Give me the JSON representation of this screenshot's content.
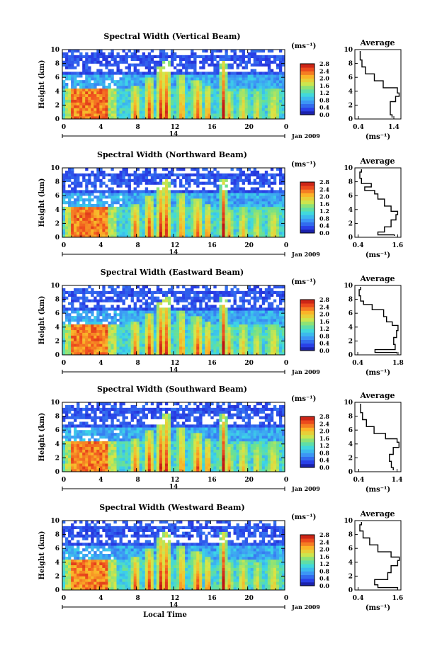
{
  "figure": {
    "xlabel": "Local Time",
    "ylabel": "Height (km)",
    "unit_label": "(ms⁻¹)",
    "date_label": "Jan 2009",
    "day_label": "14",
    "avg_title": "Average",
    "avg_xlabel": "(ms⁻¹)"
  },
  "chart_data": [
    {
      "type": "heatmap",
      "title": "Spectral Width (Vertical Beam)",
      "xlabel": "",
      "ylabel": "Height (km)",
      "xlim": [
        0,
        24
      ],
      "ylim": [
        0,
        10
      ],
      "xticks": [
        "0",
        "4",
        "8",
        "12",
        "16",
        "20",
        "0"
      ],
      "yticks": [
        "0",
        "2",
        "4",
        "6",
        "8",
        "10"
      ],
      "colorbar": {
        "label": "(ms⁻¹)",
        "ticks": [
          "2.8",
          "2.4",
          "2.0",
          "1.6",
          "1.2",
          "0.8",
          "0.4",
          "0.0"
        ],
        "range": [
          0,
          2.8
        ]
      },
      "average_profile": {
        "title": "Average",
        "xlabel": "(ms⁻¹)",
        "xlim": [
          0.3,
          1.6
        ],
        "xticks": [
          "0.4",
          "1.4"
        ],
        "height_km": [
          0.2,
          1.0,
          2.0,
          3.0,
          3.5,
          4.0,
          5.0,
          6.0,
          7.0,
          8.0,
          9.0,
          9.8
        ],
        "width_ms": [
          1.35,
          1.3,
          1.3,
          1.45,
          1.55,
          1.5,
          1.1,
          0.85,
          0.6,
          0.5,
          0.45,
          0.45
        ]
      }
    },
    {
      "type": "heatmap",
      "title": "Spectral Width (Northward Beam)",
      "xlabel": "",
      "ylabel": "Height (km)",
      "xlim": [
        0,
        24
      ],
      "ylim": [
        0,
        10
      ],
      "xticks": [
        "0",
        "4",
        "8",
        "12",
        "16",
        "20",
        "0"
      ],
      "yticks": [
        "0",
        "2",
        "4",
        "6",
        "8",
        "10"
      ],
      "colorbar": {
        "label": "(ms⁻¹)",
        "ticks": [
          "2.8",
          "2.4",
          "2.0",
          "1.6",
          "1.2",
          "0.8",
          "0.4",
          "0.0"
        ],
        "range": [
          0,
          2.8
        ]
      },
      "average_profile": {
        "title": "Average",
        "xlabel": "(ms⁻¹)",
        "xlim": [
          0.3,
          1.7
        ],
        "xticks": [
          "0.4",
          "1.6"
        ],
        "height_km": [
          0.2,
          0.5,
          1.0,
          2.0,
          3.0,
          3.5,
          4.0,
          5.0,
          6.0,
          6.5,
          7.0,
          7.5,
          8.0,
          9.0,
          9.8
        ],
        "width_ms": [
          1.5,
          1.0,
          1.2,
          1.4,
          1.55,
          1.6,
          1.4,
          1.2,
          1.0,
          0.9,
          0.6,
          0.8,
          0.5,
          0.45,
          0.5
        ]
      }
    },
    {
      "type": "heatmap",
      "title": "Spectral Width (Eastward Beam)",
      "xlabel": "",
      "ylabel": "Height (km)",
      "xlim": [
        0,
        24
      ],
      "ylim": [
        0,
        10
      ],
      "xticks": [
        "0",
        "4",
        "8",
        "12",
        "16",
        "20",
        "0"
      ],
      "yticks": [
        "0",
        "2",
        "4",
        "6",
        "8",
        "10"
      ],
      "colorbar": {
        "label": "(ms⁻¹)",
        "ticks": [
          "2.8",
          "2.4",
          "2.0",
          "1.6",
          "1.2",
          "0.8",
          "0.4",
          "0.0"
        ],
        "range": [
          0,
          2.8
        ]
      },
      "average_profile": {
        "title": "Average",
        "xlabel": "(ms⁻¹)",
        "xlim": [
          0.3,
          1.9
        ],
        "xticks": [
          "0.4",
          "1.8"
        ],
        "height_km": [
          0.2,
          0.5,
          1.0,
          2.0,
          3.0,
          4.0,
          4.5,
          5.0,
          6.0,
          7.0,
          7.5,
          8.0,
          9.0,
          9.8
        ],
        "width_ms": [
          1.75,
          1.0,
          1.7,
          1.65,
          1.75,
          1.8,
          1.6,
          1.4,
          1.3,
          0.9,
          0.6,
          0.5,
          0.45,
          0.5
        ]
      }
    },
    {
      "type": "heatmap",
      "title": "Spectral Width (Southward Beam)",
      "xlabel": "",
      "ylabel": "Height (km)",
      "xlim": [
        0,
        24
      ],
      "ylim": [
        0,
        10
      ],
      "xticks": [
        "0",
        "4",
        "8",
        "12",
        "16",
        "20",
        "0"
      ],
      "yticks": [
        "0",
        "2",
        "4",
        "6",
        "8",
        "10"
      ],
      "colorbar": {
        "label": "(ms⁻¹)",
        "ticks": [
          "2.8",
          "2.4",
          "2.0",
          "1.6",
          "1.2",
          "0.8",
          "0.4",
          "0.0"
        ],
        "range": [
          0,
          2.8
        ]
      },
      "average_profile": {
        "title": "Average",
        "xlabel": "(ms⁻¹)",
        "xlim": [
          0.3,
          1.5
        ],
        "xticks": [
          "0.4",
          "1.4"
        ],
        "height_km": [
          0.2,
          1.0,
          2.0,
          3.0,
          4.0,
          4.5,
          5.0,
          6.0,
          7.0,
          8.0,
          9.0,
          9.8
        ],
        "width_ms": [
          1.3,
          1.25,
          1.2,
          1.3,
          1.45,
          1.4,
          1.1,
          0.8,
          0.6,
          0.5,
          0.45,
          0.45
        ]
      }
    },
    {
      "type": "heatmap",
      "title": "Spectral Width (Westward Beam)",
      "xlabel": "Local Time",
      "ylabel": "Height (km)",
      "xlim": [
        0,
        24
      ],
      "ylim": [
        0,
        10
      ],
      "xticks": [
        "0",
        "4",
        "8",
        "12",
        "16",
        "20",
        "0"
      ],
      "yticks": [
        "0",
        "2",
        "4",
        "6",
        "8",
        "10"
      ],
      "colorbar": {
        "label": "(ms⁻¹)",
        "ticks": [
          "2.8",
          "2.4",
          "2.0",
          "1.6",
          "1.2",
          "0.8",
          "0.4",
          "0.0"
        ],
        "range": [
          0,
          2.8
        ]
      },
      "average_profile": {
        "title": "Average",
        "xlabel": "(ms⁻¹)",
        "xlim": [
          0.3,
          1.7
        ],
        "xticks": [
          "0.4",
          "1.6"
        ],
        "height_km": [
          0.2,
          0.5,
          1.0,
          2.0,
          3.0,
          4.0,
          4.5,
          5.0,
          6.0,
          7.0,
          8.0,
          9.0,
          9.8
        ],
        "width_ms": [
          1.6,
          1.0,
          0.9,
          1.3,
          1.4,
          1.6,
          1.65,
          1.4,
          1.0,
          0.75,
          0.55,
          0.45,
          0.5
        ]
      }
    }
  ]
}
